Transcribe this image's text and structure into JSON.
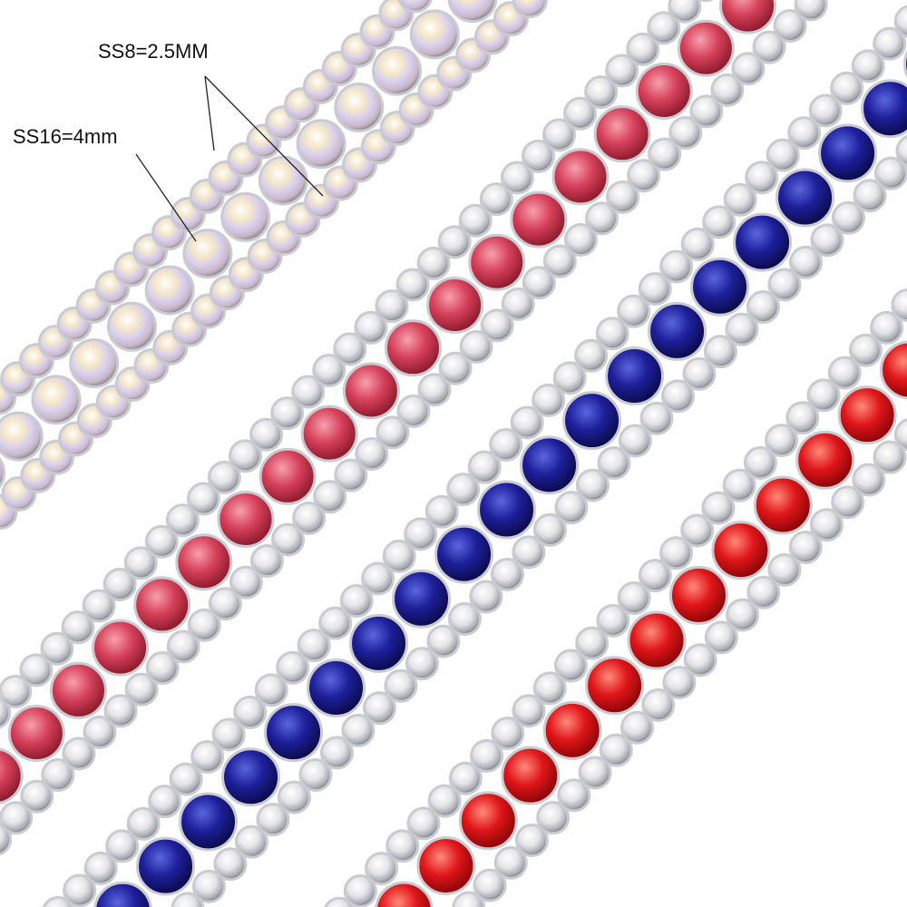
{
  "annotations": [
    {
      "label": "SS8=2.5MM"
    },
    {
      "label": "SS16=4mm"
    }
  ]
}
